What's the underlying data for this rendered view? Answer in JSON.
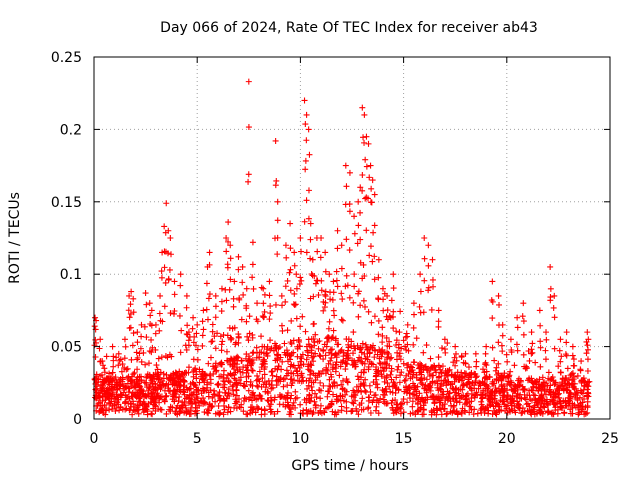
{
  "chart_data": {
    "type": "scatter",
    "title": "Day 066 of 2024, Rate Of TEC Index for receiver ab43",
    "xlabel": "GPS time / hours",
    "ylabel": "ROTI / TECUs",
    "xlim": [
      0,
      25
    ],
    "ylim": [
      0,
      0.25
    ],
    "x_ticks": [
      "0",
      "5",
      "10",
      "15",
      "20",
      "25"
    ],
    "y_ticks": [
      "0",
      "0.05",
      "0.1",
      "0.15",
      "0.2",
      "0.25"
    ],
    "grid": true,
    "marker": "+",
    "color": "#ff0000",
    "series": [
      {
        "x": [
          0.05,
          0.1,
          0.3,
          0.4,
          0.5,
          0.9,
          1.2,
          1.5,
          1.7,
          1.8,
          1.9,
          2.1,
          2.3,
          2.5,
          2.7,
          2.8,
          3.0,
          3.2,
          3.3,
          3.4,
          3.5,
          3.6,
          3.7,
          3.9,
          4.2,
          4.5,
          4.6,
          4.8,
          5.0,
          5.3,
          5.5,
          5.6,
          5.9,
          6.2,
          6.4,
          6.5,
          6.6,
          6.8,
          7.0,
          7.2,
          7.4,
          7.5,
          7.7,
          7.9,
          8.2,
          8.5,
          8.8,
          8.9,
          9.1,
          9.3,
          9.5,
          9.7,
          9.8,
          10.0,
          10.2,
          10.3,
          10.4,
          10.5,
          10.6,
          10.8,
          11.0,
          11.2,
          11.4,
          11.6,
          11.8,
          12.0,
          12.2,
          12.4,
          12.6,
          12.8,
          12.9,
          13.0,
          13.1,
          13.2,
          13.3,
          13.4,
          13.5,
          13.6,
          13.8,
          14.0,
          14.2,
          14.5,
          14.8,
          15.2,
          15.5,
          15.8,
          16.0,
          16.2,
          16.4,
          16.7,
          17.0,
          17.5,
          18.0,
          18.5,
          19.0,
          19.3,
          19.6,
          19.8,
          20.2,
          20.5,
          20.8,
          21.2,
          21.6,
          21.9,
          22.1,
          22.3,
          22.6,
          22.9,
          23.2,
          23.6,
          23.9,
          23.95
        ],
        "y": [
          0.07,
          0.068,
          0.055,
          0.04,
          0.035,
          0.05,
          0.045,
          0.055,
          0.085,
          0.088,
          0.083,
          0.06,
          0.065,
          0.087,
          0.08,
          0.075,
          0.065,
          0.085,
          0.115,
          0.133,
          0.149,
          0.13,
          0.125,
          0.095,
          0.1,
          0.085,
          0.06,
          0.07,
          0.065,
          0.075,
          0.105,
          0.115,
          0.085,
          0.09,
          0.125,
          0.136,
          0.12,
          0.095,
          0.112,
          0.105,
          0.09,
          0.233,
          0.122,
          0.08,
          0.09,
          0.095,
          0.192,
          0.15,
          0.085,
          0.12,
          0.135,
          0.115,
          0.1,
          0.125,
          0.22,
          0.21,
          0.2,
          0.135,
          0.11,
          0.125,
          0.125,
          0.115,
          0.1,
          0.095,
          0.13,
          0.12,
          0.175,
          0.17,
          0.14,
          0.15,
          0.16,
          0.215,
          0.21,
          0.195,
          0.19,
          0.175,
          0.165,
          0.155,
          0.11,
          0.09,
          0.085,
          0.1,
          0.06,
          0.065,
          0.08,
          0.1,
          0.125,
          0.12,
          0.11,
          0.075,
          0.055,
          0.05,
          0.045,
          0.045,
          0.05,
          0.095,
          0.085,
          0.065,
          0.055,
          0.07,
          0.08,
          0.06,
          0.075,
          0.06,
          0.105,
          0.085,
          0.055,
          0.06,
          0.05,
          0.04,
          0.06,
          0.055
        ]
      }
    ],
    "background": {
      "note_x_from": 0,
      "note_x_to": 24,
      "dense_band_low": 0.003,
      "dense_band_high": 0.035
    }
  }
}
